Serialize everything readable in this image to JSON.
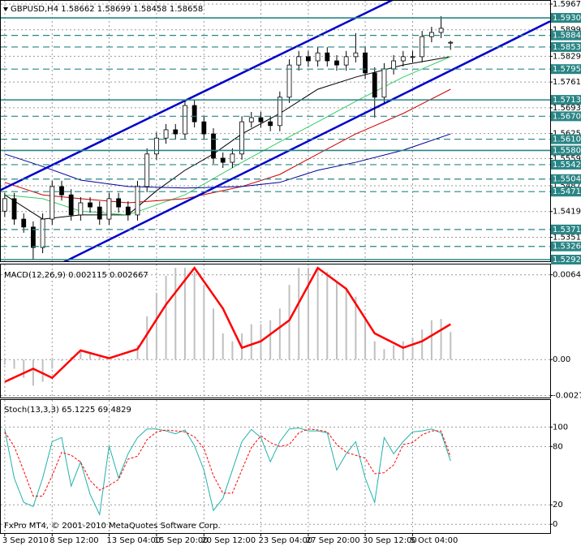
{
  "chart_data": [
    {
      "type": "candlestick",
      "title": "GBPUSD,H4  1.58662 1.58699 1.58458 1.58658",
      "up_color": "#ffffff",
      "down_color": "#000000",
      "outline_color": "#000000",
      "open": [
        1.542,
        1.5453,
        1.5399,
        1.5378,
        1.5324,
        1.5399,
        1.5485,
        1.5463,
        1.541,
        1.5442,
        1.5431,
        1.5399,
        1.5453,
        1.5431,
        1.541,
        1.5485,
        1.5571,
        1.5613,
        1.5635,
        1.5624,
        1.5699,
        1.5656,
        1.5624,
        1.556,
        1.5549,
        1.5571,
        1.5656,
        1.5667,
        1.5656,
        1.5646,
        1.5721,
        1.5806,
        1.5828,
        1.5817,
        1.5838,
        1.5817,
        1.5806,
        1.5828,
        1.5838,
        1.5785,
        1.5721,
        1.5796,
        1.5817,
        1.5828,
        1.5828,
        1.5881,
        1.5892,
        1.5866
      ],
      "high": [
        1.5468,
        1.5468,
        1.5414,
        1.5393,
        1.5414,
        1.55,
        1.55,
        1.5478,
        1.5457,
        1.5457,
        1.5446,
        1.5468,
        1.5468,
        1.5446,
        1.55,
        1.5586,
        1.5628,
        1.565,
        1.565,
        1.5714,
        1.5714,
        1.5671,
        1.5639,
        1.5575,
        1.5586,
        1.5671,
        1.5682,
        1.5682,
        1.5671,
        1.5736,
        1.5821,
        1.5843,
        1.5843,
        1.5853,
        1.5853,
        1.5832,
        1.5843,
        1.589,
        1.5853,
        1.58,
        1.5811,
        1.5832,
        1.5843,
        1.5843,
        1.5896,
        1.5907,
        1.5935,
        1.587
      ],
      "low": [
        1.5405,
        1.5384,
        1.5363,
        1.5292,
        1.5309,
        1.5384,
        1.5448,
        1.5395,
        1.5395,
        1.5416,
        1.5384,
        1.5384,
        1.5416,
        1.5395,
        1.5395,
        1.547,
        1.5556,
        1.5598,
        1.5609,
        1.5609,
        1.5641,
        1.5609,
        1.5545,
        1.5534,
        1.5534,
        1.5556,
        1.5641,
        1.5641,
        1.5631,
        1.5631,
        1.5706,
        1.5791,
        1.5802,
        1.5802,
        1.5802,
        1.5791,
        1.5791,
        1.5813,
        1.577,
        1.5667,
        1.5706,
        1.5781,
        1.5802,
        1.5813,
        1.5813,
        1.5866,
        1.5877,
        1.5846
      ],
      "close": [
        1.5453,
        1.5399,
        1.5378,
        1.5324,
        1.5399,
        1.5485,
        1.5463,
        1.541,
        1.5442,
        1.5431,
        1.5399,
        1.5453,
        1.5431,
        1.541,
        1.5485,
        1.5571,
        1.5613,
        1.5635,
        1.5624,
        1.5699,
        1.5656,
        1.5624,
        1.556,
        1.5549,
        1.5571,
        1.5656,
        1.5667,
        1.5656,
        1.5646,
        1.5721,
        1.5806,
        1.5828,
        1.5817,
        1.5838,
        1.5817,
        1.5806,
        1.5828,
        1.5838,
        1.5785,
        1.5721,
        1.5796,
        1.5817,
        1.5828,
        1.5828,
        1.5881,
        1.5892,
        1.5903,
        1.5866
      ],
      "xlim": [
        -0.5,
        57.5
      ],
      "xticks": [
        {
          "value": 0,
          "label": "3 Sep 2010"
        },
        {
          "value": 5,
          "label": "8 Sep 12:00"
        },
        {
          "value": 11,
          "label": "13 Sep 04:00"
        },
        {
          "value": 16,
          "label": "15 Sep 20:00"
        },
        {
          "value": 21,
          "label": "20 Sep 12:00"
        },
        {
          "value": 27,
          "label": "23 Sep 04:00"
        },
        {
          "value": 32,
          "label": "27 Sep 20:00"
        },
        {
          "value": 38,
          "label": "30 Sep 12:00"
        },
        {
          "value": 43,
          "label": "5 Oct 04:00"
        }
      ],
      "ylim": [
        1.5292,
        1.5967
      ],
      "yticks": [
        {
          "value": 1.5967,
          "label": "1.59670"
        },
        {
          "value": 1.5899,
          "label": "1.58990"
        },
        {
          "value": 1.5829,
          "label": "1.58290"
        },
        {
          "value": 1.5761,
          "label": "1.57610"
        },
        {
          "value": 1.5693,
          "label": "1.56930"
        },
        {
          "value": 1.5625,
          "label": "1.56250"
        },
        {
          "value": 1.5559,
          "label": "1.55590"
        },
        {
          "value": 1.5487,
          "label": "1.54870"
        },
        {
          "value": 1.5419,
          "label": "1.54190"
        },
        {
          "value": 1.5351,
          "label": "1.53510"
        }
      ],
      "grid": true,
      "levels": [
        1.59305,
        1.58842,
        1.58536,
        1.57952,
        1.57139,
        1.56706,
        1.56101,
        1.55803,
        1.55429,
        1.55047,
        1.54716,
        1.53716,
        1.53269,
        {
          "value": 1.5292,
          "label": "1.52920"
        }
      ],
      "level_styles": [
        "solid",
        "dashed",
        "dashed",
        "dashed",
        "solid",
        "dashed",
        "dashed",
        "solid",
        "dashed",
        "dashed",
        "dashed",
        "dashed",
        "dashed",
        "solid"
      ],
      "level_color": "#2a8585",
      "trendlines": [
        {
          "color": "#0000cc",
          "x": [
            0,
            40
          ],
          "values": [
            1.5481,
            1.5967
          ]
        },
        {
          "color": "#0000cc",
          "x": [
            7,
            54
          ],
          "values": [
            1.5295,
            1.5878
          ]
        }
      ],
      "series": [
        {
          "type": "line",
          "color": "#000000",
          "x": [
            0,
            4,
            8,
            13,
            16,
            19,
            22,
            25,
            29,
            33,
            37,
            42,
            47
          ],
          "values": [
            1.5463,
            1.5399,
            1.541,
            1.541,
            1.5474,
            1.5528,
            1.5571,
            1.5624,
            1.5678,
            1.5742,
            1.5774,
            1.5806,
            1.5828
          ]
        },
        {
          "type": "line",
          "color": "#33cc66",
          "x": [
            0,
            4,
            8,
            13,
            19,
            25,
            29,
            33,
            37,
            42,
            47
          ],
          "values": [
            1.5463,
            1.5453,
            1.542,
            1.541,
            1.5463,
            1.5549,
            1.5603,
            1.5656,
            1.571,
            1.5774,
            1.5828
          ]
        },
        {
          "type": "line",
          "color": "#cc0000",
          "x": [
            0,
            4,
            8,
            13,
            19,
            25,
            29,
            33,
            37,
            42,
            47
          ],
          "values": [
            1.5496,
            1.5463,
            1.5453,
            1.5442,
            1.5453,
            1.5485,
            1.5517,
            1.5571,
            1.5624,
            1.5678,
            1.5742
          ]
        },
        {
          "type": "line",
          "color": "#000099",
          "x": [
            0,
            4,
            8,
            13,
            19,
            25,
            29,
            33,
            37,
            42,
            47
          ],
          "values": [
            1.5571,
            1.5538,
            1.5502,
            1.5485,
            1.5481,
            1.5485,
            1.5496,
            1.5528,
            1.5549,
            1.5581,
            1.5624
          ]
        }
      ]
    },
    {
      "type": "macd",
      "title": "MACD(12,26,9) 0.002115 0.002667",
      "ylim": [
        -0.0029,
        0.0072
      ],
      "yticks": [
        0.006475,
        {
          "value": 0,
          "label": "0.00"
        },
        -0.002745
      ],
      "series": [
        {
          "type": "bar",
          "color": "#c0c0c0",
          "values": [
            -0.0004,
            -0.0007,
            -0.0014,
            -0.002,
            -0.0017,
            -0.0007,
            -0.0001,
            0.0002,
            0.0007,
            0.0005,
            0.0002,
            0.0002,
            0.0001,
            -0.0001,
            0.0011,
            0.0033,
            0.0051,
            0.0064,
            0.007,
            0.007,
            0.0067,
            0.0057,
            0.0039,
            0.002,
            0.0014,
            0.002,
            0.0027,
            0.0027,
            0.003,
            0.0039,
            0.0057,
            0.007,
            0.007,
            0.007,
            0.0067,
            0.006,
            0.0054,
            0.0048,
            0.0033,
            0.0014,
            0.0008,
            0.0011,
            0.0014,
            0.0017,
            0.0023,
            0.003,
            0.0031,
            0.0021
          ]
        },
        {
          "type": "line",
          "color": "#ff0000",
          "width": 2.5,
          "x": [
            0,
            3,
            5,
            8,
            11,
            14,
            17,
            20,
            23,
            25,
            27,
            30,
            33,
            36,
            39,
            42,
            44,
            47
          ],
          "values": [
            -0.0017,
            -0.0007,
            -0.0014,
            0.0007,
            0.0001,
            0.0008,
            0.0042,
            0.007,
            0.0039,
            0.0009,
            0.0014,
            0.003,
            0.007,
            0.0054,
            0.002,
            0.0009,
            0.0014,
            0.0027
          ]
        }
      ]
    },
    {
      "type": "stochastic",
      "title": "Stoch(13,3,3) 65.1225 69.4829",
      "annotation": "FxPro MT4, © 2001-2010 MetaQuotes Software Corp.",
      "ylim": [
        -9,
        127
      ],
      "yticks": [
        100,
        80,
        20,
        0
      ],
      "series": [
        {
          "type": "line",
          "color": "#20b2aa",
          "values": [
            97.5,
            47.5,
            22.5,
            18.3,
            47.5,
            85.0,
            89.2,
            39.2,
            64.2,
            30.8,
            10.0,
            80.8,
            47.5,
            72.5,
            89.2,
            98.0,
            98.0,
            96.0,
            93.0,
            97.0,
            80.8,
            55.8,
            14.2,
            26.7,
            55.8,
            85.0,
            97.5,
            89.2,
            64.2,
            85.0,
            98.0,
            99.0,
            96.0,
            96.0,
            94.0,
            55.8,
            72.5,
            85.0,
            47.5,
            22.5,
            89.2,
            72.5,
            85.0,
            95.0,
            96.0,
            98.0,
            94.0,
            65.1
          ]
        },
        {
          "type": "line",
          "color": "#ff0000",
          "style": "dashed",
          "values": [
            95,
            80,
            55,
            29,
            29,
            50,
            74,
            71,
            64,
            45,
            35,
            40,
            46,
            67,
            70,
            87,
            95,
            97,
            96,
            95,
            90,
            78,
            50,
            32,
            32,
            56,
            79,
            91,
            84,
            80,
            82,
            94,
            98,
            97,
            95,
            82,
            74,
            71,
            68,
            52,
            53,
            61,
            82,
            84,
            92,
            96,
            96,
            69.5
          ]
        }
      ]
    }
  ]
}
